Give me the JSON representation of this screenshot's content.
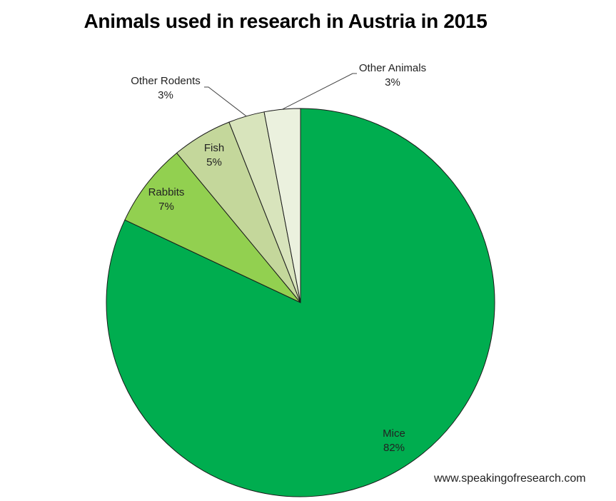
{
  "chart_data": {
    "type": "pie",
    "title": "Animals used in research in Austria in 2015",
    "categories": [
      "Mice",
      "Rabbits",
      "Fish",
      "Other Rodents",
      "Other Animals"
    ],
    "values": [
      82,
      7,
      5,
      3,
      3
    ],
    "labels": [
      "82%",
      "7%",
      "5%",
      "3%",
      "3%"
    ],
    "colors": [
      "#00ad4f",
      "#92d050",
      "#c4d79b",
      "#d8e4bc",
      "#ebf1de"
    ],
    "start_angle_deg": 0,
    "direction": "clockwise",
    "legend": "none",
    "data_labels": "category + percentage"
  },
  "footer": {
    "credit": "www.speakingofresearch.com"
  }
}
